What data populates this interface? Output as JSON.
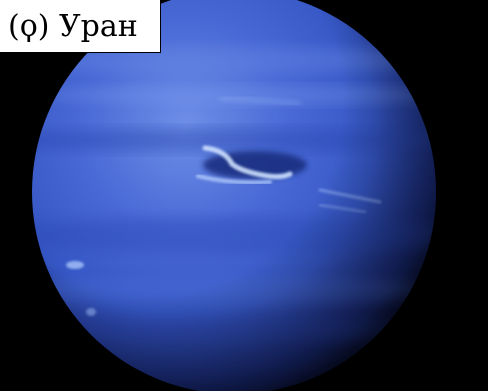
{
  "caption": {
    "text": "(ϙ) Уран"
  },
  "image": {
    "subject": "planet",
    "colors": {
      "background": "#000000",
      "planet_base": "#3556c4",
      "planet_highlight": "#6f8fe8",
      "planet_shadow": "#0b1340",
      "storm_cloud": "#cfe2ff"
    }
  }
}
